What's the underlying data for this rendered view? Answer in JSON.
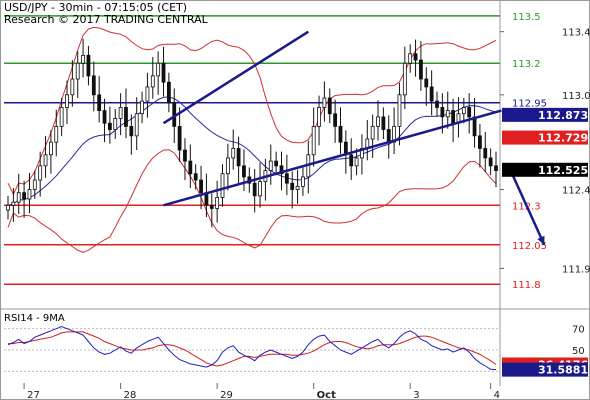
{
  "header": {
    "title": "USD/JPY - 30min - 07:15:05 (CET)",
    "copyright": "Research © 2017 TRADING CENTRAL"
  },
  "rsi_title": "RSI14 - 9MA",
  "colors": {
    "green": "#2e9a2e",
    "blue": "#1a1a8c",
    "red": "#e02020",
    "candle": "#111111",
    "band": "#d23030",
    "ma": "#2a2aa0",
    "rsi": "#2020c0",
    "rsi_ma": "#d02020",
    "price_box": "#000000",
    "blue_box": "#1a1a8c",
    "red_box": "#e02020"
  },
  "chart_data": {
    "type": "candlestick",
    "instrument": "USD/JPY",
    "timeframe": "30min",
    "x_labels": [
      "27",
      "28",
      "29",
      "Oct",
      "3",
      "4"
    ],
    "y_ticks": [
      113.4,
      113.0,
      112.4,
      111.9
    ],
    "ylim": [
      111.7,
      113.55
    ],
    "levels": [
      {
        "value": 113.5,
        "label": "113.5",
        "color": "green"
      },
      {
        "value": 113.2,
        "label": "113.2",
        "color": "green"
      },
      {
        "value": 112.95,
        "label": "112.95",
        "color": "blue"
      },
      {
        "value": 112.3,
        "label": "112.3",
        "color": "red"
      },
      {
        "value": 112.05,
        "label": "112.05",
        "color": "red"
      },
      {
        "value": 111.8,
        "label": "111.8",
        "color": "red"
      }
    ],
    "price_boxes": [
      {
        "value": 112.873,
        "label": "112.873",
        "color": "blue_box"
      },
      {
        "value": 112.729,
        "label": "112.729",
        "color": "red_box"
      },
      {
        "value": 112.525,
        "label": "112.525",
        "color": "price_box"
      }
    ],
    "series": [
      {
        "name": "close",
        "values": [
          112.3,
          112.32,
          112.38,
          112.34,
          112.4,
          112.46,
          112.55,
          112.62,
          112.7,
          112.8,
          112.92,
          113.0,
          113.1,
          113.2,
          113.25,
          113.12,
          113.0,
          112.9,
          112.82,
          112.78,
          112.85,
          112.92,
          112.8,
          112.74,
          112.88,
          112.96,
          113.05,
          113.12,
          113.2,
          113.08,
          112.95,
          112.8,
          112.65,
          112.58,
          112.5,
          112.46,
          112.38,
          112.3,
          112.28,
          112.35,
          112.5,
          112.6,
          112.66,
          112.55,
          112.48,
          112.44,
          112.36,
          112.45,
          112.52,
          112.58,
          112.55,
          112.5,
          112.44,
          112.4,
          112.42,
          112.48,
          112.62,
          112.8,
          112.92,
          112.98,
          112.88,
          112.8,
          112.7,
          112.62,
          112.55,
          112.6,
          112.66,
          112.72,
          112.8,
          112.86,
          112.78,
          112.7,
          112.8,
          113.0,
          113.2,
          113.26,
          113.22,
          113.1,
          113.05,
          112.96,
          112.92,
          112.86,
          112.9,
          112.82,
          112.88,
          112.92,
          112.86,
          112.74,
          112.66,
          112.6,
          112.55,
          112.52
        ]
      },
      {
        "name": "RSI14",
        "values": [
          55,
          57,
          60,
          56,
          58,
          62,
          64,
          66,
          68,
          70,
          72,
          70,
          68,
          66,
          64,
          58,
          52,
          48,
          46,
          47,
          50,
          53,
          49,
          47,
          52,
          55,
          58,
          60,
          62,
          56,
          50,
          45,
          41,
          39,
          37,
          36,
          35,
          34,
          36,
          40,
          48,
          52,
          54,
          48,
          45,
          43,
          40,
          45,
          48,
          50,
          48,
          46,
          44,
          42,
          44,
          48,
          55,
          60,
          63,
          64,
          58,
          54,
          50,
          48,
          46,
          49,
          52,
          55,
          58,
          60,
          55,
          52,
          56,
          62,
          66,
          68,
          65,
          60,
          58,
          54,
          52,
          50,
          51,
          48,
          50,
          52,
          48,
          42,
          38,
          35,
          32,
          31.5881
        ]
      },
      {
        "name": "9MA",
        "values": [
          56,
          56,
          57,
          57,
          58,
          59,
          60,
          61,
          62,
          64,
          66,
          67,
          67,
          67,
          67,
          65,
          63,
          61,
          58,
          56,
          54,
          52,
          51,
          50,
          50,
          50,
          51,
          52,
          54,
          55,
          55,
          54,
          52,
          50,
          47,
          44,
          41,
          38,
          36,
          35,
          36,
          38,
          40,
          42,
          44,
          44,
          43,
          44,
          45,
          46,
          46,
          46,
          46,
          45,
          45,
          46,
          47,
          49,
          52,
          55,
          57,
          58,
          58,
          57,
          55,
          53,
          52,
          51,
          52,
          54,
          55,
          55,
          55,
          56,
          58,
          60,
          62,
          63,
          63,
          62,
          60,
          58,
          56,
          54,
          52,
          51,
          50,
          48,
          46,
          43,
          40,
          36.4176
        ]
      }
    ],
    "rsi_levels": [
      70,
      50,
      30
    ],
    "rsi_range": [
      20,
      80
    ],
    "rsi_boxes": [
      {
        "value": 36.4176,
        "label": "36.4176",
        "color": "red_box"
      },
      {
        "value": 31.5881,
        "label": "31.5881",
        "color": "blue_box"
      }
    ],
    "channel": {
      "lower": [
        [
          29,
          112.3
        ],
        [
          92,
          112.9
        ]
      ],
      "upper": [
        [
          29,
          112.82
        ],
        [
          56,
          113.4
        ]
      ]
    },
    "arrow": {
      "from": [
        94,
        112.5
      ],
      "to": [
        100,
        112.05
      ]
    }
  }
}
